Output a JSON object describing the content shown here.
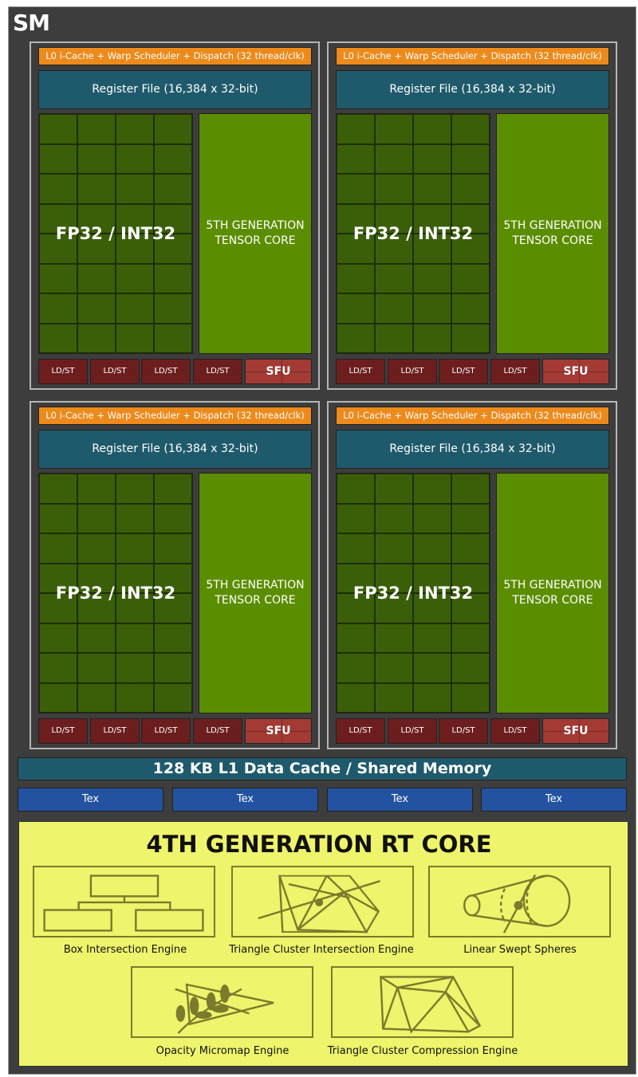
{
  "sm_title": "SM",
  "partition": {
    "scheduler": "L0 i-Cache + Warp Scheduler + Dispatch (32 thread/clk)",
    "register_file": "Register File (16,384 x 32-bit)",
    "cores": "FP32 / INT32",
    "tensor_core": "5TH GENERATION TENSOR CORE",
    "ldst": "LD/ST",
    "sfu": "SFU"
  },
  "l1_cache": "128 KB L1 Data Cache / Shared Memory",
  "tex_units": [
    "Tex",
    "Tex",
    "Tex",
    "Tex"
  ],
  "rt_core": {
    "title": "4TH GENERATION RT CORE",
    "engines": [
      {
        "label": "Box Intersection Engine",
        "icon": "box-hierarchy-icon"
      },
      {
        "label": "Triangle Cluster Intersection Engine",
        "icon": "triangle-cluster-ray-icon"
      },
      {
        "label": "Linear Swept Spheres",
        "icon": "swept-sphere-icon"
      },
      {
        "label": "Opacity Micromap Engine",
        "icon": "leaf-micromap-icon"
      },
      {
        "label": "Triangle Cluster Compression Engine",
        "icon": "triangle-cluster-icon"
      }
    ]
  },
  "colors": {
    "scheduler": "#ec8a1c",
    "register_file": "#1e5a6b",
    "cores": "#3b5f09",
    "tensor_core": "#5b8d00",
    "ldst": "#6c1e1e",
    "sfu": "#a33a34",
    "tex": "#2352a0",
    "rt_core": "#eef46b"
  }
}
